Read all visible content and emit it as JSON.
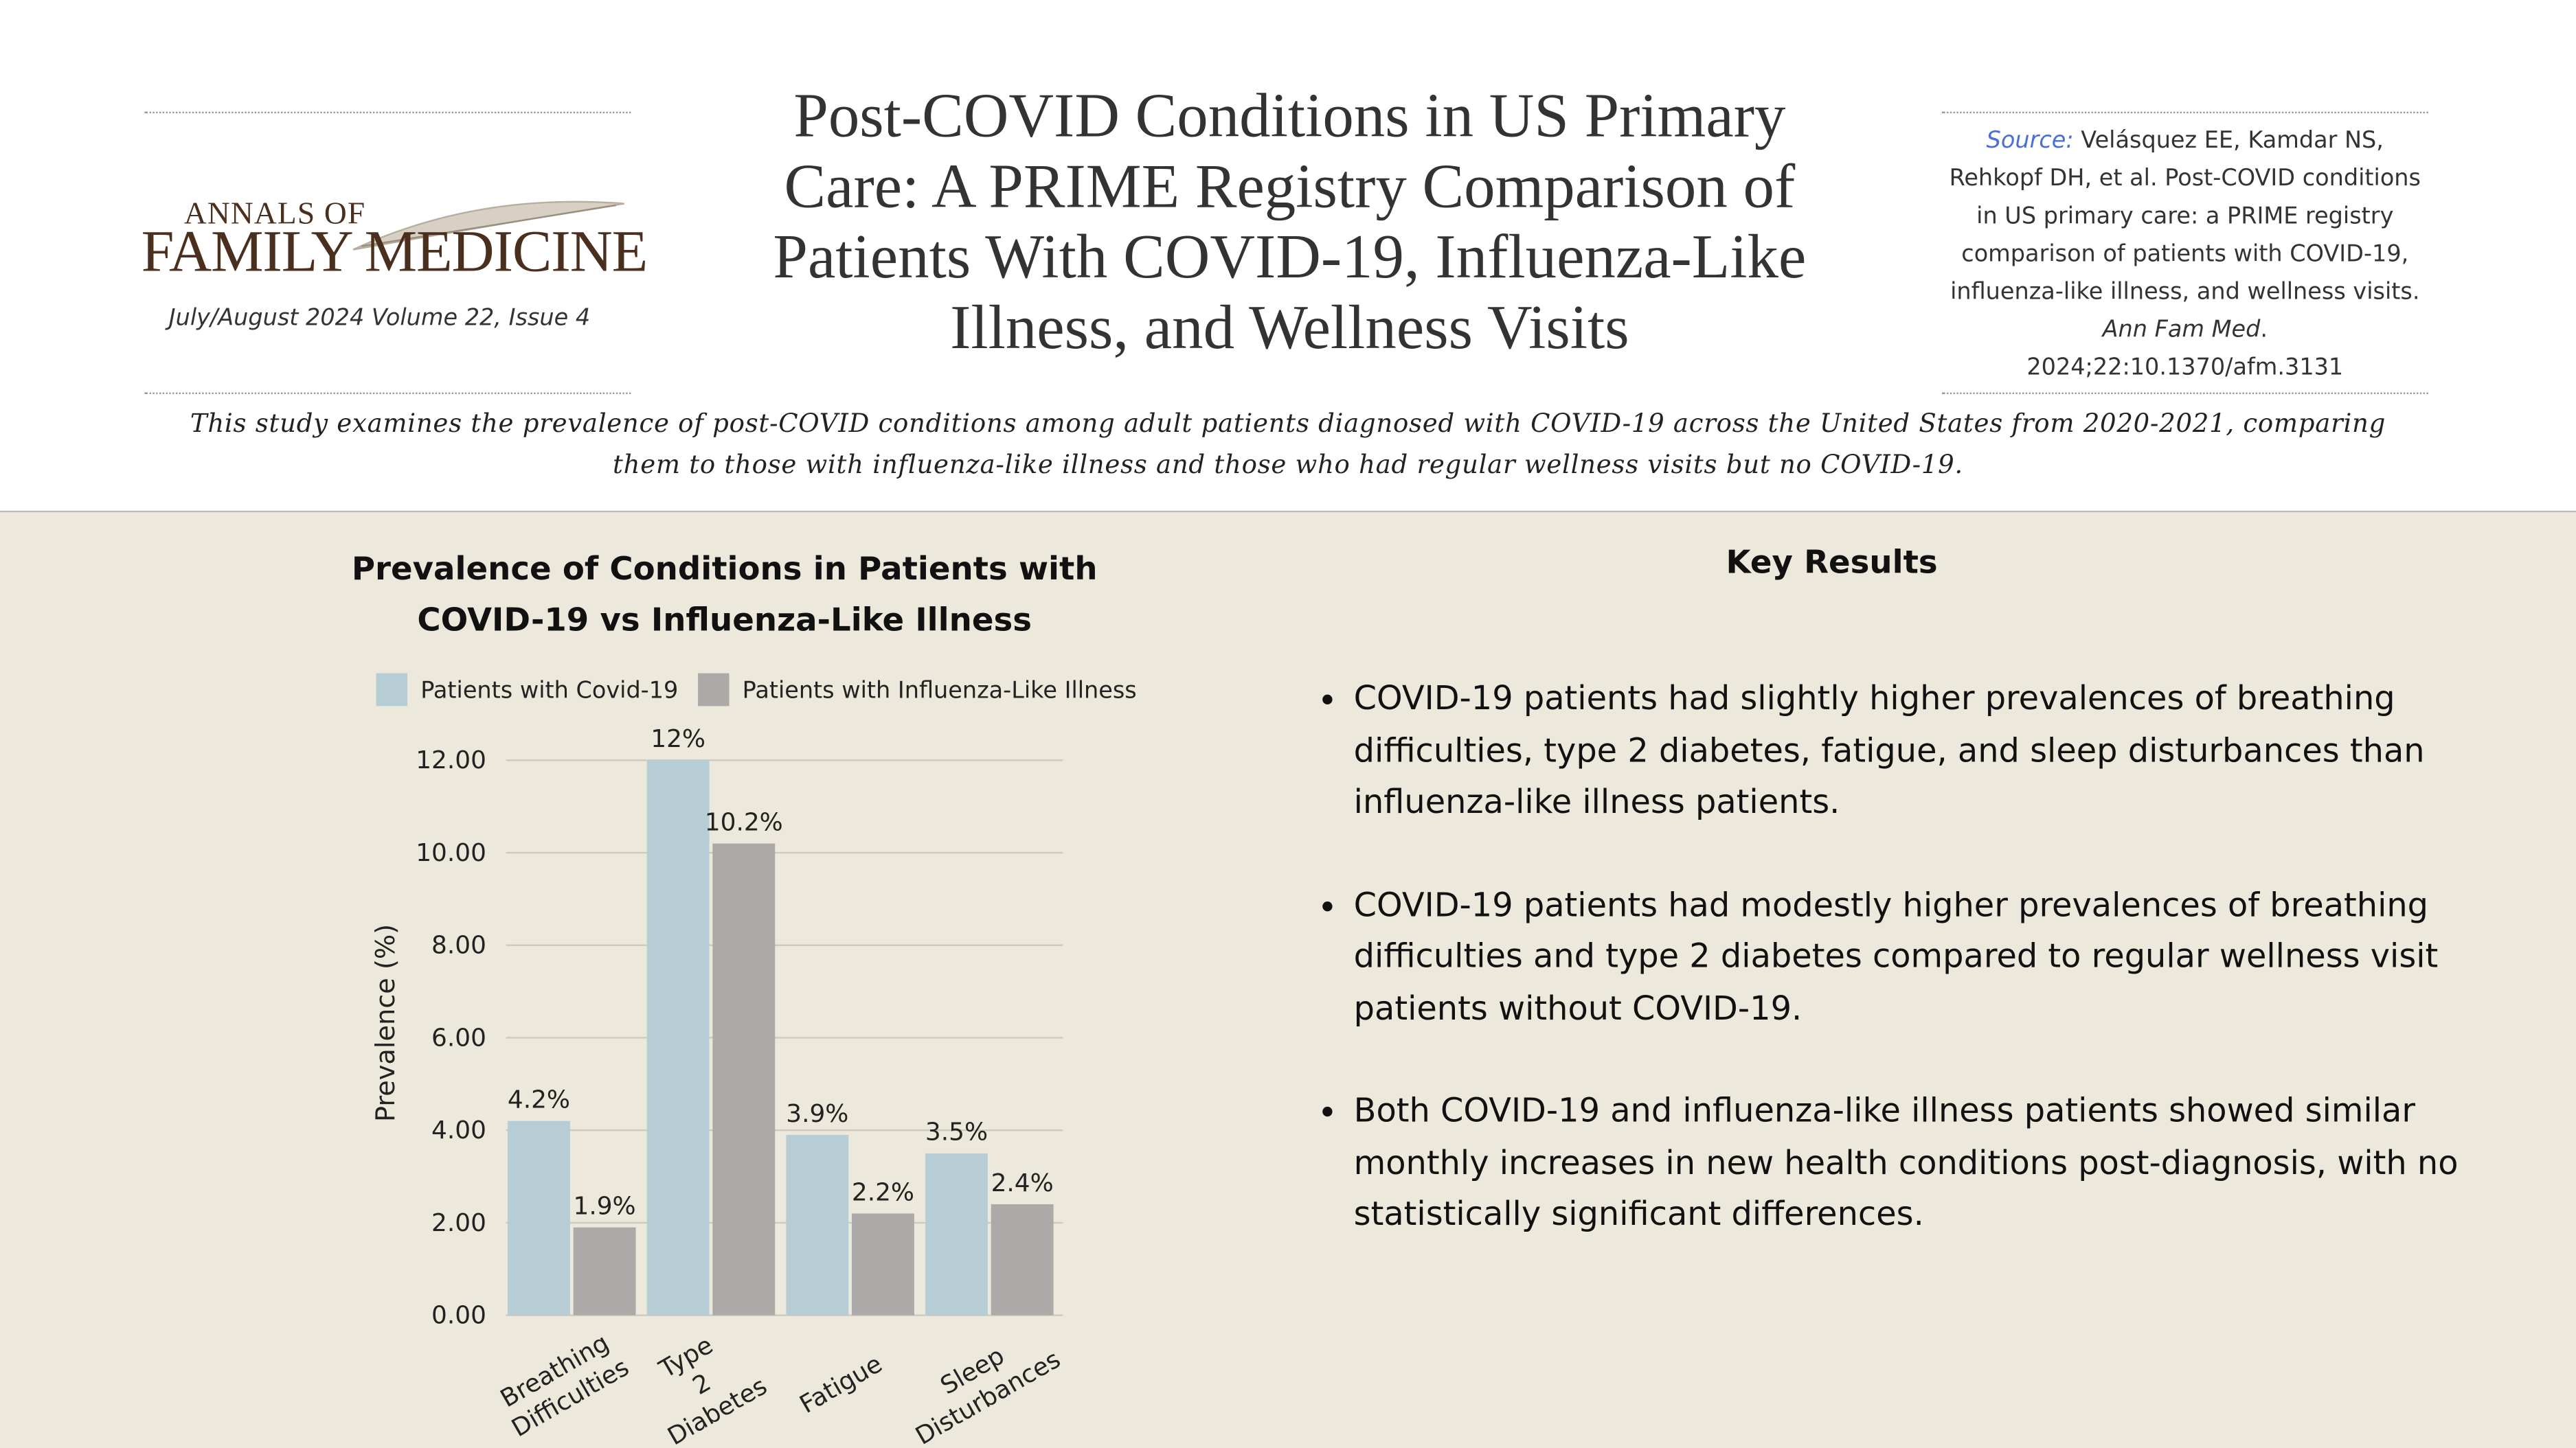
{
  "header": {
    "journal_line1": "Annals of",
    "journal_line2": "Family Medicine",
    "issue": "July/August 2024 Volume 22, Issue 4",
    "title": "Post-COVID Conditions in US Primary Care: A PRIME Registry Comparison of Patients With COVID-19, Influenza-Like Illness, and Wellness Visits",
    "source_label": "Source:",
    "source_text": "Velásquez EE, Kamdar NS, Rehkopf DH, et al. Post-COVID conditions in US primary care: a PRIME registry comparison of patients with COVID-19, influenza-like illness, and wellness visits.",
    "source_journal": "Ann Fam Med",
    "source_end": ". 2024;22:10.1370/afm.3131",
    "description": "This study examines the prevalence of post-COVID conditions among adult patients diagnosed with COVID-19 across the United States from 2020-2021, comparing them to those with influenza-like illness and those who had regular wellness visits but no COVID-19."
  },
  "chart_data": {
    "type": "bar",
    "title": "Prevalence of Conditions in Patients with COVID-19 vs Influenza-Like Illness",
    "y_label": "Prevalence (%)",
    "categories": [
      "Breathing Difficulties",
      "Type 2 Diabetes",
      "Fatigue",
      "Sleep Disturbances"
    ],
    "series": [
      {
        "name": "Patients with Covid-19",
        "color": "#b7cdd6",
        "values": [
          4.2,
          12,
          3.9,
          3.5
        ],
        "value_labels": [
          "4.2%",
          "12%",
          "3.9%",
          "3.5%"
        ]
      },
      {
        "name": "Patients with Influenza-Like Illness",
        "color": "#acaaa8",
        "values": [
          1.9,
          10.2,
          2.2,
          2.4
        ],
        "value_labels": [
          "1.9%",
          "10.2%",
          "2.2%",
          "2.4%"
        ]
      }
    ],
    "ylim": [
      0,
      12
    ],
    "yticks": [
      {
        "value": 0,
        "label": "0.00"
      },
      {
        "value": 2,
        "label": "2.00"
      },
      {
        "value": 4,
        "label": "4.00"
      },
      {
        "value": 6,
        "label": "6.00"
      },
      {
        "value": 8,
        "label": "8.00"
      },
      {
        "value": 10,
        "label": "10.00"
      },
      {
        "value": 12,
        "label": "12.00"
      }
    ],
    "grid": true,
    "legend": "top"
  },
  "key_results": {
    "title": "Key Results",
    "items": [
      "COVID-19 patients had slightly higher prevalences of breathing difficulties, type 2 diabetes, fatigue, and sleep disturbances than influenza-like illness patients.",
      "COVID-19 patients had modestly higher prevalences of breathing difficulties and type 2 diabetes compared to regular wellness visit patients without COVID-19.",
      "Both COVID-19 and influenza-like illness patients showed similar monthly increases in new health conditions post-diagnosis, with no statistically significant differences."
    ]
  }
}
